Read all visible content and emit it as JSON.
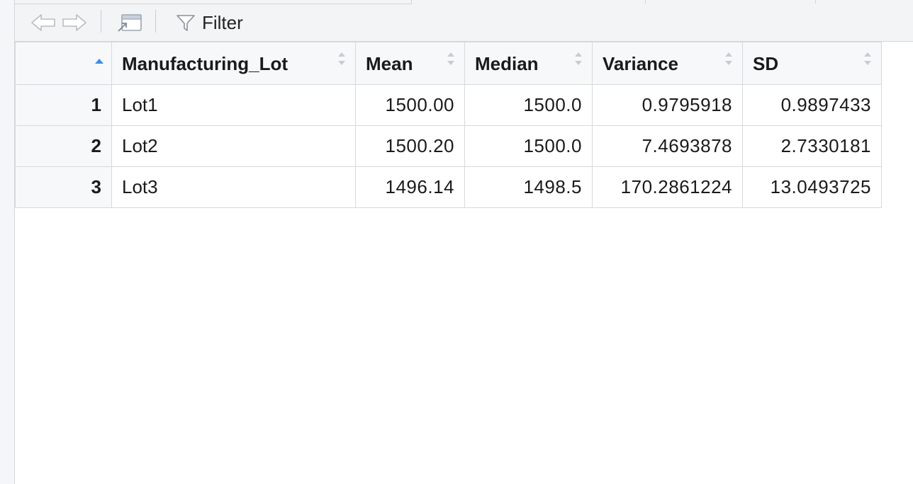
{
  "toolbar": {
    "back_icon": "arrow-left-icon",
    "forward_icon": "arrow-right-icon",
    "popout_icon": "popout-window-icon",
    "filter_icon": "funnel-icon",
    "filter_label": "Filter"
  },
  "table": {
    "sorted_column": "row-names",
    "sort_direction": "ascending",
    "sort_active_color": "#3a8ee6",
    "columns": [
      "Manufacturing_Lot",
      "Mean",
      "Median",
      "Variance",
      "SD"
    ],
    "rows": [
      {
        "rowname": "1",
        "Manufacturing_Lot": "Lot1",
        "Mean": "1500.00",
        "Median": "1500.0",
        "Variance": "0.9795918",
        "SD": "0.9897433"
      },
      {
        "rowname": "2",
        "Manufacturing_Lot": "Lot2",
        "Mean": "1500.20",
        "Median": "1500.0",
        "Variance": "7.4693878",
        "SD": "2.7330181"
      },
      {
        "rowname": "3",
        "Manufacturing_Lot": "Lot3",
        "Mean": "1496.14",
        "Median": "1498.5",
        "Variance": "170.2861224",
        "SD": "13.0493725"
      }
    ]
  }
}
